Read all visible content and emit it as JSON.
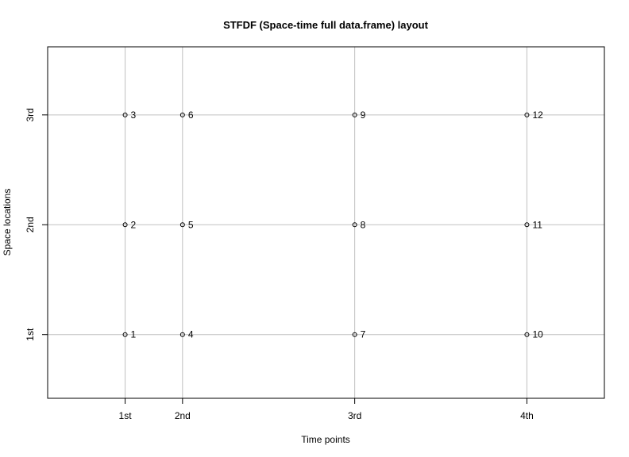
{
  "chart_data": {
    "type": "scatter",
    "title": "STFDF (Space-time full data.frame) layout",
    "xlabel": "Time points",
    "ylabel": "Space locations",
    "x_ticks": [
      {
        "value": 1,
        "label": "1st"
      },
      {
        "value": 2,
        "label": "2nd"
      },
      {
        "value": 5,
        "label": "3rd"
      },
      {
        "value": 8,
        "label": "4th"
      }
    ],
    "y_ticks": [
      {
        "value": 1,
        "label": "1st"
      },
      {
        "value": 2,
        "label": "2nd"
      },
      {
        "value": 3,
        "label": "3rd"
      }
    ],
    "xlim": [
      -0.35,
      9.35
    ],
    "ylim": [
      0.42,
      3.62
    ],
    "grid": true,
    "grid_color": "#c0c0c0",
    "point_color": "#000000",
    "points": [
      {
        "x": 1,
        "y": 1,
        "label": "1"
      },
      {
        "x": 1,
        "y": 2,
        "label": "2"
      },
      {
        "x": 1,
        "y": 3,
        "label": "3"
      },
      {
        "x": 2,
        "y": 1,
        "label": "4"
      },
      {
        "x": 2,
        "y": 2,
        "label": "5"
      },
      {
        "x": 2,
        "y": 3,
        "label": "6"
      },
      {
        "x": 5,
        "y": 1,
        "label": "7"
      },
      {
        "x": 5,
        "y": 2,
        "label": "8"
      },
      {
        "x": 5,
        "y": 3,
        "label": "9"
      },
      {
        "x": 8,
        "y": 1,
        "label": "10"
      },
      {
        "x": 8,
        "y": 2,
        "label": "11"
      },
      {
        "x": 8,
        "y": 3,
        "label": "12"
      }
    ]
  }
}
